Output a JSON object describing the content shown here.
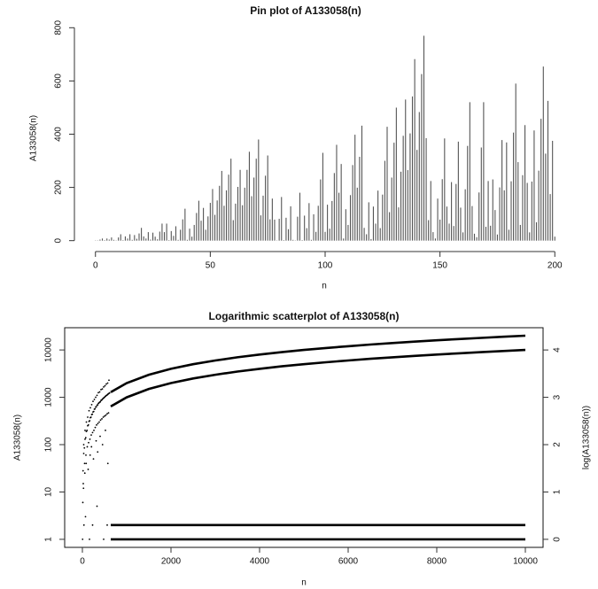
{
  "chart_data": [
    {
      "type": "pin",
      "title": "Pin plot of A133058(n)",
      "x_label": "n",
      "y_label": "A133058(n)",
      "x": [
        0,
        1,
        2,
        3,
        4,
        5,
        6,
        7,
        8,
        9,
        10,
        11,
        12,
        13,
        14,
        15,
        16,
        17,
        18,
        19,
        20,
        21,
        22,
        23,
        24,
        25,
        26,
        27,
        28,
        29,
        30,
        31,
        32,
        33,
        34,
        35,
        36,
        37,
        38,
        39,
        40,
        41,
        42,
        43,
        44,
        45,
        46,
        47,
        48,
        49,
        50,
        51,
        52,
        53,
        54,
        55,
        56,
        57,
        58,
        59,
        60,
        61,
        62,
        63,
        64,
        65,
        66,
        67,
        68,
        69,
        70,
        71,
        72,
        73,
        74,
        75,
        76,
        77,
        78,
        79,
        80,
        81,
        82,
        83,
        84,
        85,
        86,
        87,
        88,
        89,
        90,
        91,
        92,
        93,
        94,
        95,
        96,
        97,
        98,
        99,
        100,
        101,
        102,
        103,
        104,
        105,
        106,
        107,
        108,
        109,
        110,
        111,
        112,
        113,
        114,
        115,
        116,
        117,
        118,
        119,
        120,
        121,
        122,
        123,
        124,
        125,
        126,
        127,
        128,
        129,
        130,
        131,
        132,
        133,
        134,
        135,
        136,
        137,
        138,
        139,
        140,
        141,
        142,
        143,
        144,
        145,
        146,
        147,
        148,
        149,
        150,
        151,
        152,
        153,
        154,
        155,
        156,
        157,
        158,
        159,
        160,
        161,
        162,
        163,
        164,
        165,
        166,
        167,
        168,
        169,
        170,
        171,
        172,
        173,
        174,
        175,
        176,
        177,
        178,
        179,
        180,
        181,
        182,
        183,
        184,
        185,
        186,
        187,
        188,
        189,
        190,
        191,
        192,
        193,
        194,
        195,
        196,
        197,
        198,
        199,
        200
      ],
      "values": [
        1,
        1,
        4,
        8,
        2,
        8,
        4,
        12,
        3,
        1,
        12,
        24,
        2,
        16,
        8,
        24,
        3,
        21,
        7,
        27,
        48,
        16,
        8,
        32,
        4,
        30,
        15,
        5,
        34,
        64,
        32,
        64,
        2,
        36,
        18,
        54,
        3,
        41,
        80,
        120,
        3,
        45,
        15,
        59,
        104,
        150,
        75,
        123,
        41,
        91,
        142,
        194,
        97,
        151,
        206,
        262,
        131,
        189,
        248,
        308,
        77,
        139,
        202,
        266,
        133,
        199,
        266,
        334,
        167,
        237,
        308,
        380,
        95,
        169,
        244,
        320,
        80,
        158,
        79,
        1,
        82,
        164,
        2,
        86,
        43,
        129,
        3,
        1,
        90,
        180,
        2,
        94,
        47,
        141,
        3,
        99,
        33,
        131,
        230,
        330,
        33,
        135,
        45,
        149,
        254,
        360,
        180,
        288,
        8,
        118,
        59,
        171,
        284,
        398,
        199,
        315,
        432,
        48,
        24,
        144,
        6,
        128,
        64,
        188,
        47,
        173,
        300,
        428,
        107,
        237,
        368,
        500,
        125,
        259,
        394,
        530,
        265,
        403,
        542,
        682,
        341,
        483,
        626,
        770,
        385,
        77,
        224,
        32,
        8,
        158,
        79,
        231,
        384,
        128,
        64,
        220,
        55,
        213,
        372,
        124,
        31,
        193,
        356,
        520,
        130,
        26,
        13,
        181,
        350,
        520,
        52,
        224,
        56,
        230,
        115,
        23,
        200,
        378,
        189,
        369,
        41,
        223,
        406,
        590,
        295,
        59,
        246,
        434,
        217,
        31,
        222,
        414,
        69,
        263,
        458,
        654,
        327,
        525,
        175,
        375,
        15
      ],
      "color": "#555555",
      "xlim": [
        -8,
        208
      ],
      "xticks": [
        0,
        50,
        100,
        150,
        200
      ],
      "ylim": [
        -31,
        801
      ],
      "yticks": [
        0,
        200,
        400,
        600,
        800
      ]
    },
    {
      "type": "scatter",
      "title": "Logarithmic scatterplot of A133058(n)",
      "x_label": "n",
      "y_label": "A133058(n)",
      "y2_label": "log(A133058(n))",
      "log_y": true,
      "color": "#000000",
      "xlim": [
        -400,
        10400
      ],
      "xticks": [
        0,
        2000,
        4000,
        6000,
        8000,
        10000
      ],
      "ylim": [
        0.676,
        29500
      ],
      "yticks": [
        1,
        10,
        100,
        1000,
        10000
      ],
      "y2lim": [
        -0.17,
        4.47
      ],
      "y2ticks": [
        0,
        1,
        2,
        3,
        4
      ],
      "series": [
        {
          "style": "points",
          "x": [
            15,
            30,
            45,
            60,
            75,
            90,
            105,
            120,
            135,
            150,
            165,
            180,
            195,
            210,
            225,
            240,
            255,
            270,
            285,
            300,
            315,
            330,
            345,
            360,
            375,
            390,
            405,
            420,
            435,
            450,
            465,
            480,
            495,
            510,
            525,
            540,
            555,
            570,
            585,
            600,
            615,
            30,
            60,
            90,
            120,
            150,
            180,
            210,
            240,
            270,
            300,
            330,
            360,
            390,
            420,
            450,
            480,
            510,
            540,
            570,
            600,
            20,
            50,
            80,
            110,
            140,
            170,
            200,
            230,
            260,
            290,
            320,
            350,
            380,
            410,
            440,
            470,
            500,
            530,
            560,
            590,
            10,
            25,
            55,
            85,
            130,
            175,
            205,
            250,
            310,
            345,
            400,
            455,
            520,
            575,
            5,
            35,
            70,
            160,
            230,
            330,
            480,
            560
          ],
          "values": [
            28,
            65,
            85,
            130,
            140,
            190,
            200,
            250,
            260,
            310,
            320,
            370,
            380,
            430,
            440,
            490,
            500,
            560,
            570,
            620,
            630,
            680,
            690,
            740,
            760,
            790,
            800,
            860,
            870,
            910,
            940,
            970,
            990,
            1030,
            1060,
            1090,
            1110,
            1150,
            1180,
            1210,
            1240,
            100,
            200,
            300,
            380,
            520,
            600,
            700,
            820,
            900,
            1000,
            1100,
            1250,
            1300,
            1450,
            1500,
            1650,
            1750,
            1900,
            2000,
            2300,
            15,
            40,
            60,
            90,
            110,
            130,
            160,
            180,
            200,
            230,
            260,
            280,
            300,
            330,
            350,
            380,
            400,
            420,
            450,
            470,
            6,
            12,
            25,
            40,
            30,
            60,
            90,
            50,
            120,
            70,
            150,
            100,
            200,
            40,
            1,
            2,
            3,
            1,
            2,
            5,
            1,
            2
          ]
        },
        {
          "style": "line",
          "x": [
            640,
            1000,
            1500,
            2000,
            2500,
            3000,
            3500,
            4000,
            4500,
            5000,
            5500,
            6000,
            6500,
            7000,
            7500,
            8000,
            8500,
            9000,
            9500,
            10000
          ],
          "values": [
            1280,
            2000,
            3000,
            4000,
            5000,
            6000,
            7000,
            8000,
            9000,
            10000,
            11000,
            12000,
            13000,
            14000,
            15000,
            16000,
            17000,
            18000,
            19000,
            20000
          ]
        },
        {
          "style": "line",
          "x": [
            640,
            1000,
            1500,
            2000,
            2500,
            3000,
            3500,
            4000,
            4500,
            5000,
            5500,
            6000,
            6500,
            7000,
            7500,
            8000,
            8500,
            9000,
            9500,
            10000
          ],
          "values": [
            640,
            1000,
            1500,
            2000,
            2500,
            3000,
            3500,
            4000,
            4500,
            5000,
            5500,
            6000,
            6500,
            7000,
            7500,
            8000,
            8500,
            9000,
            9500,
            10000
          ]
        },
        {
          "style": "line",
          "x": [
            640,
            10000
          ],
          "values": [
            2,
            2
          ]
        },
        {
          "style": "line",
          "x": [
            640,
            10000
          ],
          "values": [
            1,
            1
          ]
        }
      ]
    }
  ]
}
